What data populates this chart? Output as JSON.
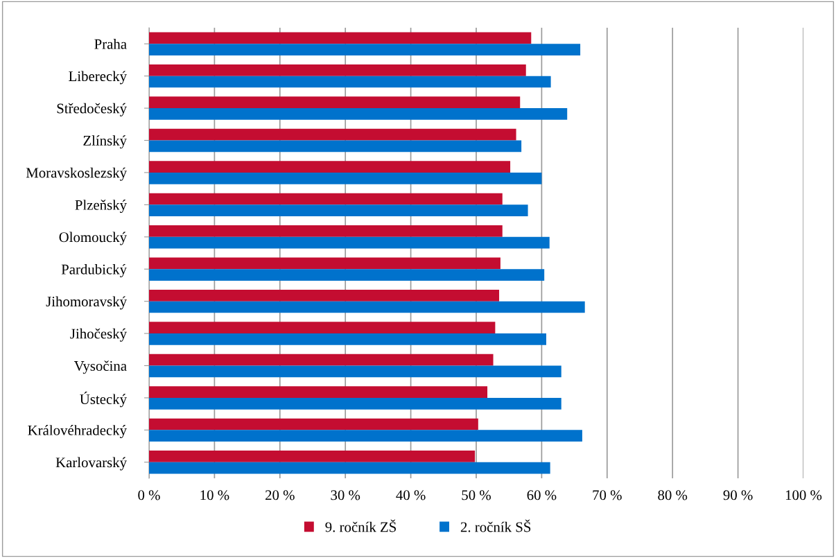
{
  "chart_data": {
    "type": "bar",
    "orientation": "horizontal",
    "categories": [
      "Praha",
      "Liberecký",
      "Středočeský",
      "Zlínský",
      "Moravskoslezský",
      "Plzeňský",
      "Olomoucký",
      "Pardubický",
      "Jihomoravský",
      "Jihočeský",
      "Vysočina",
      "Ústecký",
      "Královéhradecký",
      "Karlovarský"
    ],
    "series": [
      {
        "name": "9. ročník ZŠ",
        "color": "#c40d31",
        "values": [
          58.4,
          57.6,
          56.7,
          56.1,
          55.2,
          54.0,
          54.0,
          53.7,
          53.5,
          52.9,
          52.6,
          51.7,
          50.3,
          49.8
        ]
      },
      {
        "name": "2. ročník SŠ",
        "color": "#0072cc",
        "values": [
          65.9,
          61.4,
          63.9,
          56.9,
          60.0,
          57.9,
          61.2,
          60.4,
          66.6,
          60.7,
          63.0,
          63.0,
          66.2,
          61.3
        ]
      }
    ],
    "xlim": [
      0,
      100
    ],
    "xticks": [
      {
        "value": 0,
        "label": "0 %"
      },
      {
        "value": 10,
        "label": "10 %"
      },
      {
        "value": 20,
        "label": "20 %"
      },
      {
        "value": 30,
        "label": "30 %"
      },
      {
        "value": 40,
        "label": "40 %"
      },
      {
        "value": 50,
        "label": "50 %"
      },
      {
        "value": 60,
        "label": "60 %"
      },
      {
        "value": 70,
        "label": "70 %"
      },
      {
        "value": 80,
        "label": "80 %"
      },
      {
        "value": 90,
        "label": "90 %"
      },
      {
        "value": 100,
        "label": "100 %"
      }
    ],
    "grid": "x",
    "legend": "bottom"
  }
}
